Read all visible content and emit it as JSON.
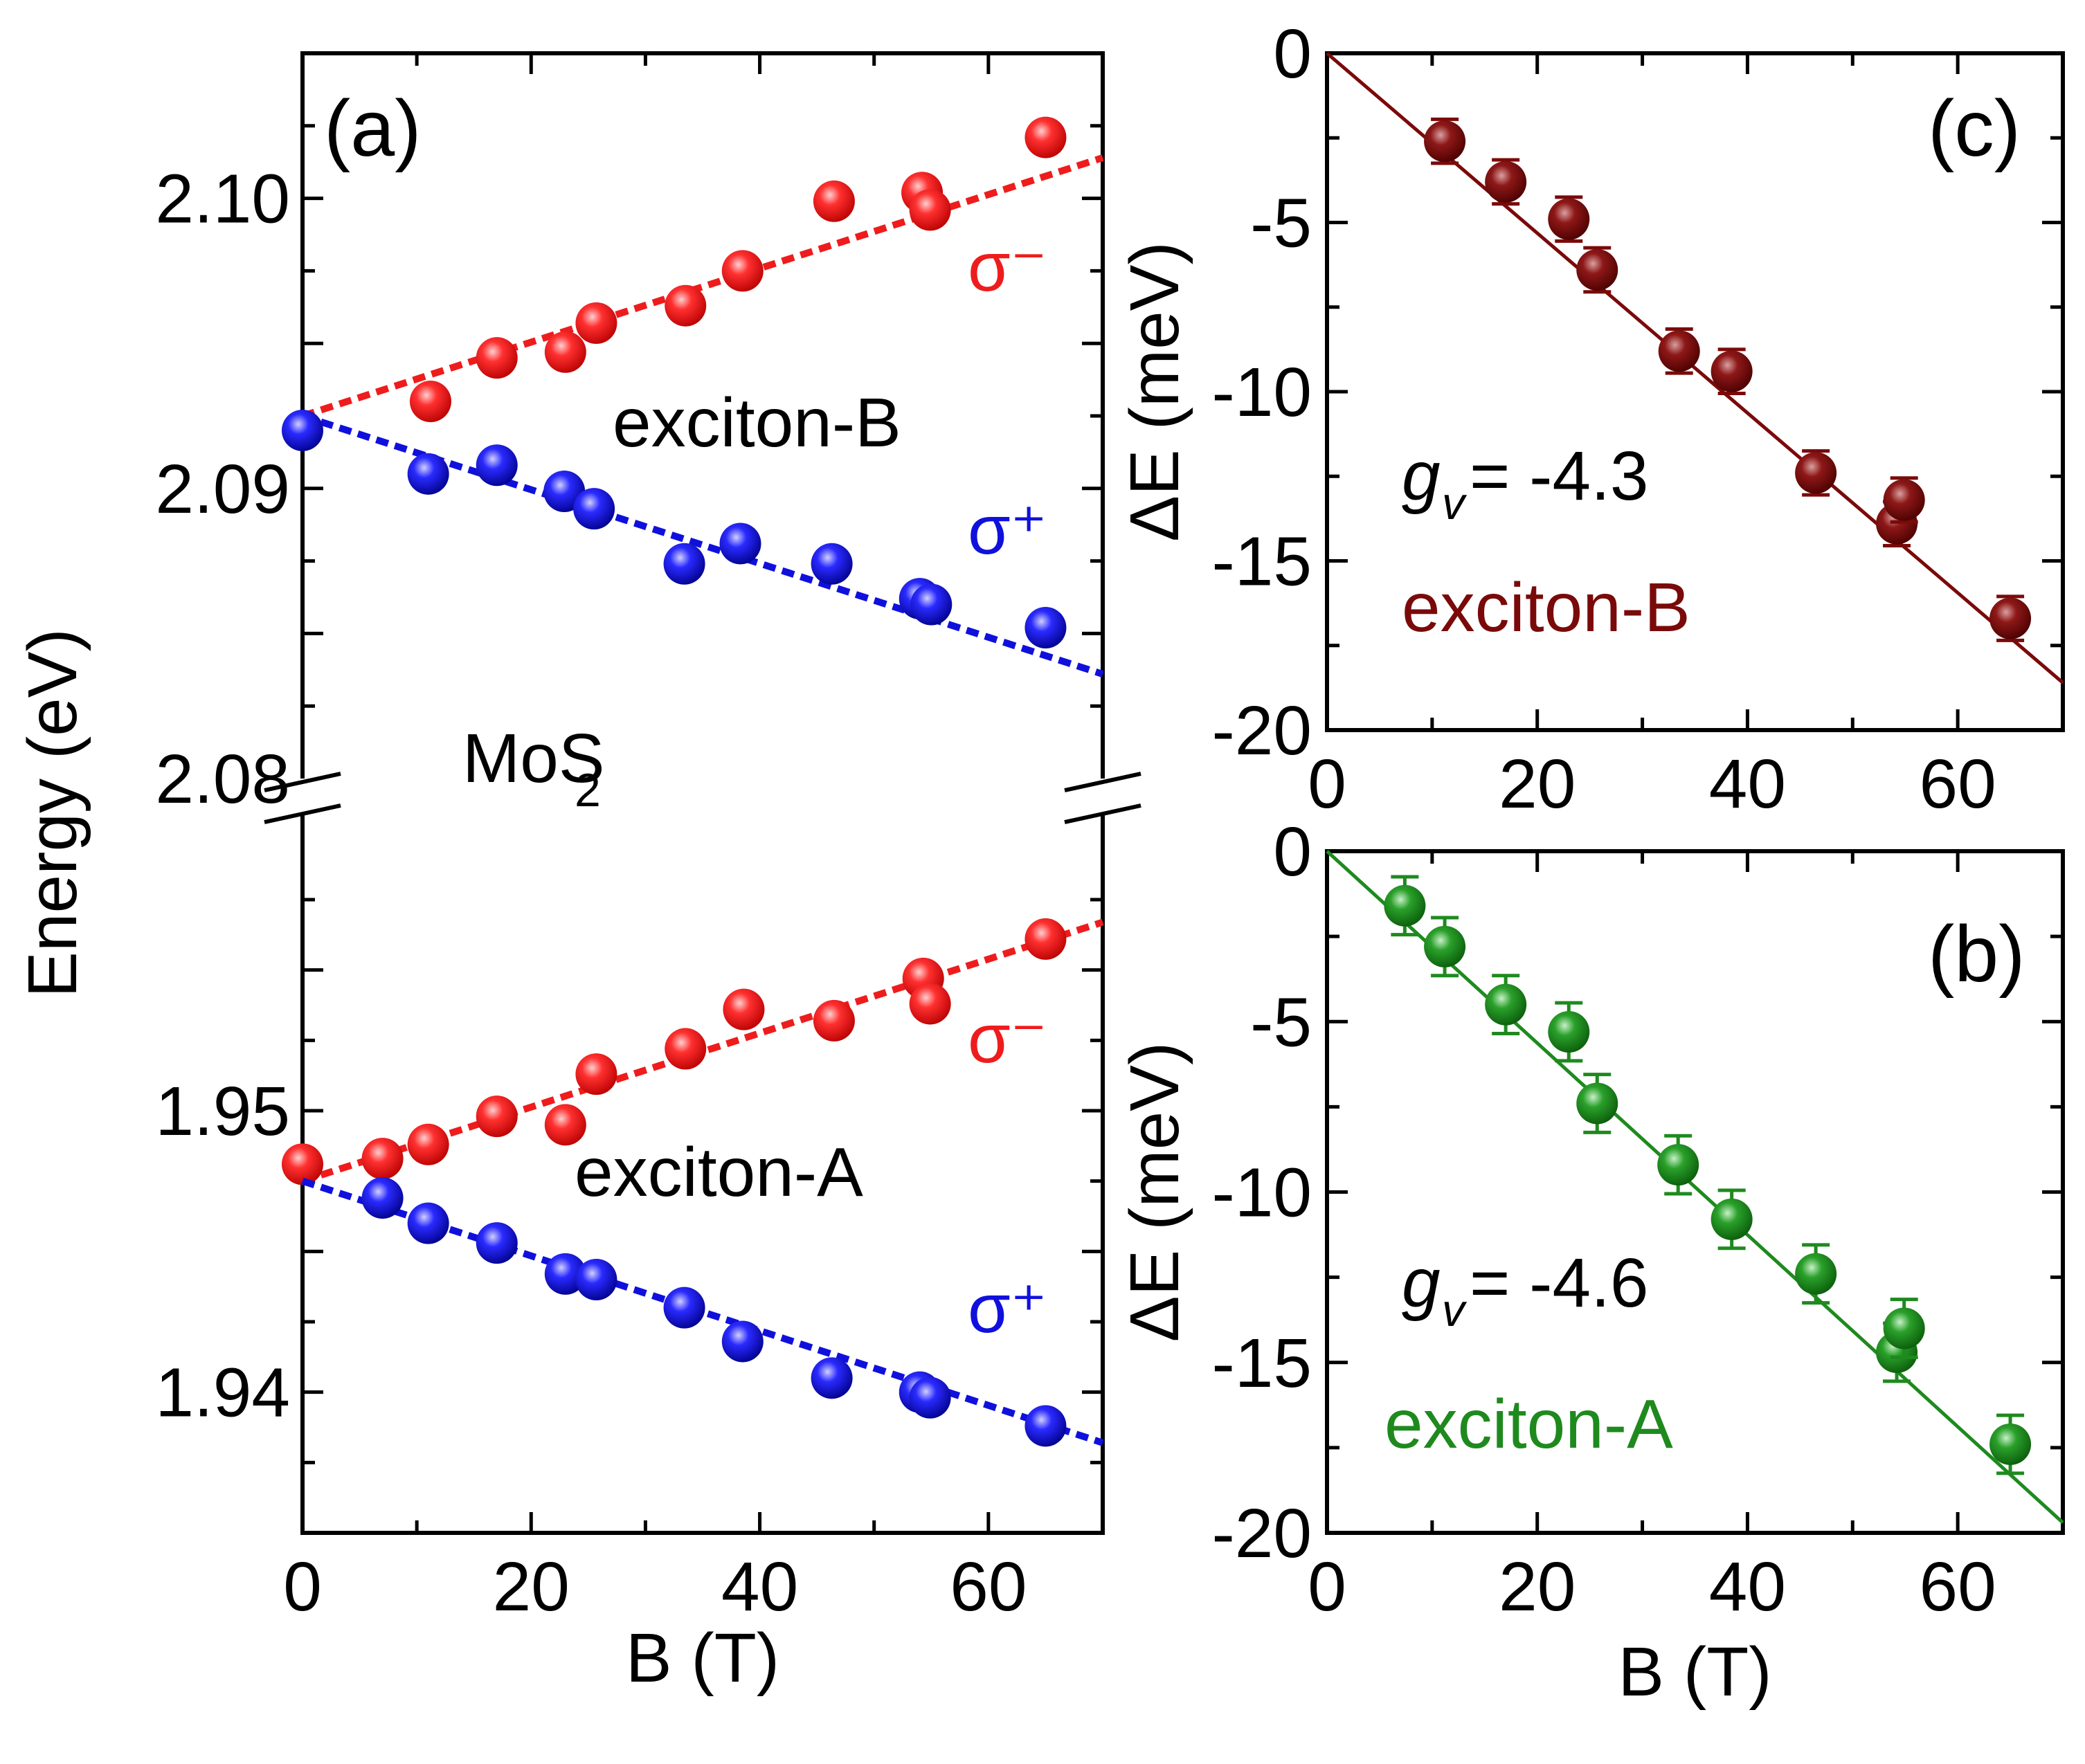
{
  "chart_data": [
    {
      "type": "scatter",
      "panel": "(a)",
      "title": "",
      "xlabel": "B (T)",
      "ylabel": "Energy (eV)",
      "annotation": "MoS",
      "annotation_sub": "2",
      "xlim": [
        0,
        70
      ],
      "xticks": [
        0,
        20,
        40,
        60
      ],
      "upper": {
        "ylim": [
          2.08,
          2.105
        ],
        "yticks": [
          2.08,
          2.09,
          2.1
        ],
        "ytick_labels": [
          "2.08",
          "2.09",
          "2.10"
        ],
        "label": "exciton-B",
        "series": [
          {
            "name": "σ⁻",
            "color": "#ee1c1c",
            "points": [
              [
                11.2,
                2.093
              ],
              [
                17,
                2.0945
              ],
              [
                23,
                2.0947
              ],
              [
                25.7,
                2.0957
              ],
              [
                33.5,
                2.0963
              ],
              [
                38.5,
                2.0975
              ],
              [
                46.5,
                2.0999
              ],
              [
                54.2,
                2.1002
              ],
              [
                54.9,
                2.0996
              ],
              [
                65,
                2.1021
              ]
            ],
            "fit": [
              [
                0,
                2.0925
              ],
              [
                70,
                2.1014
              ]
            ]
          },
          {
            "name": "σ⁺",
            "color": "#1010dd",
            "points": [
              [
                0,
                2.092
              ],
              [
                11,
                2.0905
              ],
              [
                17,
                2.0908
              ],
              [
                22.9,
                2.0899
              ],
              [
                25.5,
                2.0893
              ],
              [
                33.4,
                2.0874
              ],
              [
                38.3,
                2.0881
              ],
              [
                46.3,
                2.0874
              ],
              [
                54,
                2.0862
              ],
              [
                55,
                2.086
              ],
              [
                65,
                2.0852
              ]
            ],
            "fit": [
              [
                0,
                2.0925
              ],
              [
                70,
                2.0836
              ]
            ]
          }
        ]
      },
      "lower": {
        "ylim": [
          1.935,
          1.9605
        ],
        "yticks": [
          1.94,
          1.95
        ],
        "ytick_labels": [
          "1.94",
          "1.95"
        ],
        "label": "exciton-A",
        "series": [
          {
            "name": "σ⁻",
            "color": "#ee1c1c",
            "points": [
              [
                0,
                1.9481
              ],
              [
                7,
                1.9483
              ],
              [
                11,
                1.9488
              ],
              [
                17,
                1.9498
              ],
              [
                23,
                1.9495
              ],
              [
                25.7,
                1.9513
              ],
              [
                33.5,
                1.9522
              ],
              [
                38.6,
                1.9536
              ],
              [
                46.5,
                1.9532
              ],
              [
                54.3,
                1.9547
              ],
              [
                54.9,
                1.9538
              ],
              [
                65,
                1.9561
              ]
            ],
            "fit": [
              [
                0,
                1.9475
              ],
              [
                70,
                1.9567
              ]
            ]
          },
          {
            "name": "σ⁺",
            "color": "#1010dd",
            "points": [
              [
                7,
                1.9469
              ],
              [
                11,
                1.946
              ],
              [
                17,
                1.9453
              ],
              [
                23,
                1.9442
              ],
              [
                25.7,
                1.944
              ],
              [
                33.4,
                1.943
              ],
              [
                38.5,
                1.9418
              ],
              [
                46.3,
                1.9405
              ],
              [
                54,
                1.94
              ],
              [
                54.9,
                1.9398
              ],
              [
                65,
                1.9388
              ]
            ],
            "fit": [
              [
                0,
                1.9475
              ],
              [
                70,
                1.9382
              ]
            ]
          }
        ]
      }
    },
    {
      "type": "scatter",
      "panel": "(c)",
      "xlabel": "",
      "ylabel": "ΔE (meV)",
      "xlim": [
        0,
        70
      ],
      "ylim": [
        -20,
        0
      ],
      "xticks": [
        0,
        20,
        40,
        60
      ],
      "yticks": [
        0,
        -5,
        -10,
        -15,
        -20
      ],
      "ytick_labels": [
        "0",
        "-5",
        "-10",
        "-15",
        "-20"
      ],
      "g_label": "g",
      "g_sub": "v",
      "g_value": " = -4.3",
      "series_name": "exciton-B",
      "color": "#7a0a0a",
      "error": 0.65,
      "points": [
        [
          11.2,
          -2.6
        ],
        [
          17,
          -3.8
        ],
        [
          23,
          -4.9
        ],
        [
          25.7,
          -6.4
        ],
        [
          33.5,
          -8.8
        ],
        [
          38.5,
          -9.4
        ],
        [
          46.5,
          -12.4
        ],
        [
          54.2,
          -13.9
        ],
        [
          54.9,
          -13.2
        ],
        [
          65,
          -16.7
        ]
      ],
      "fit": [
        [
          0,
          0
        ],
        [
          70,
          -18.6
        ]
      ]
    },
    {
      "type": "scatter",
      "panel": "(b)",
      "xlabel": "B (T)",
      "ylabel": "ΔE (meV)",
      "xlim": [
        0,
        70
      ],
      "ylim": [
        -20,
        0
      ],
      "xticks": [
        0,
        20,
        40,
        60
      ],
      "yticks": [
        0,
        -5,
        -10,
        -15,
        -20
      ],
      "ytick_labels": [
        "0",
        "-5",
        "-10",
        "-15",
        "-20"
      ],
      "g_label": "g",
      "g_sub": "v",
      "g_value": " = -4.6",
      "series_name": "exciton-A",
      "color": "#1e8a1e",
      "error": 0.85,
      "points": [
        [
          7.4,
          -1.6
        ],
        [
          11.2,
          -2.8
        ],
        [
          17,
          -4.5
        ],
        [
          23,
          -5.3
        ],
        [
          25.7,
          -7.4
        ],
        [
          33.4,
          -9.2
        ],
        [
          38.5,
          -10.8
        ],
        [
          46.5,
          -12.4
        ],
        [
          54.2,
          -14.7
        ],
        [
          54.9,
          -14.0
        ],
        [
          65,
          -17.4
        ]
      ],
      "fit": [
        [
          0,
          0
        ],
        [
          70,
          -19.7
        ]
      ]
    }
  ]
}
